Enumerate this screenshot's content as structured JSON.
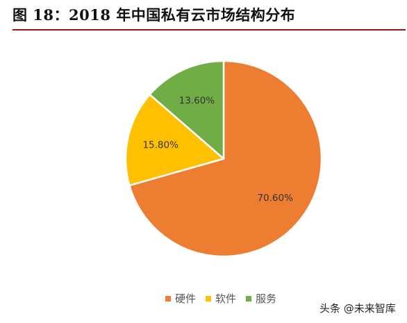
{
  "header": {
    "title": "图 18：2018 年中国私有云市场结构分布"
  },
  "colors": {
    "hardware": "#ED7D31",
    "software": "#FFC000",
    "service": "#70AD47",
    "title_rule": "#8B1A1A"
  },
  "chart_data": {
    "type": "pie",
    "title": "",
    "series": [
      {
        "slices": [
          {
            "label": "硬件",
            "value": 70.6,
            "value_label": "70.60%",
            "color": "#ED7D31"
          },
          {
            "label": "软件",
            "value": 15.8,
            "value_label": "15.80%",
            "color": "#FFC000"
          },
          {
            "label": "服务",
            "value": 13.6,
            "value_label": "13.60%",
            "color": "#70AD47"
          }
        ]
      }
    ],
    "legend": {
      "position": "bottom",
      "entries": [
        "硬件",
        "软件",
        "服务"
      ]
    }
  },
  "watermark": {
    "text": "头条 @未来智库"
  }
}
